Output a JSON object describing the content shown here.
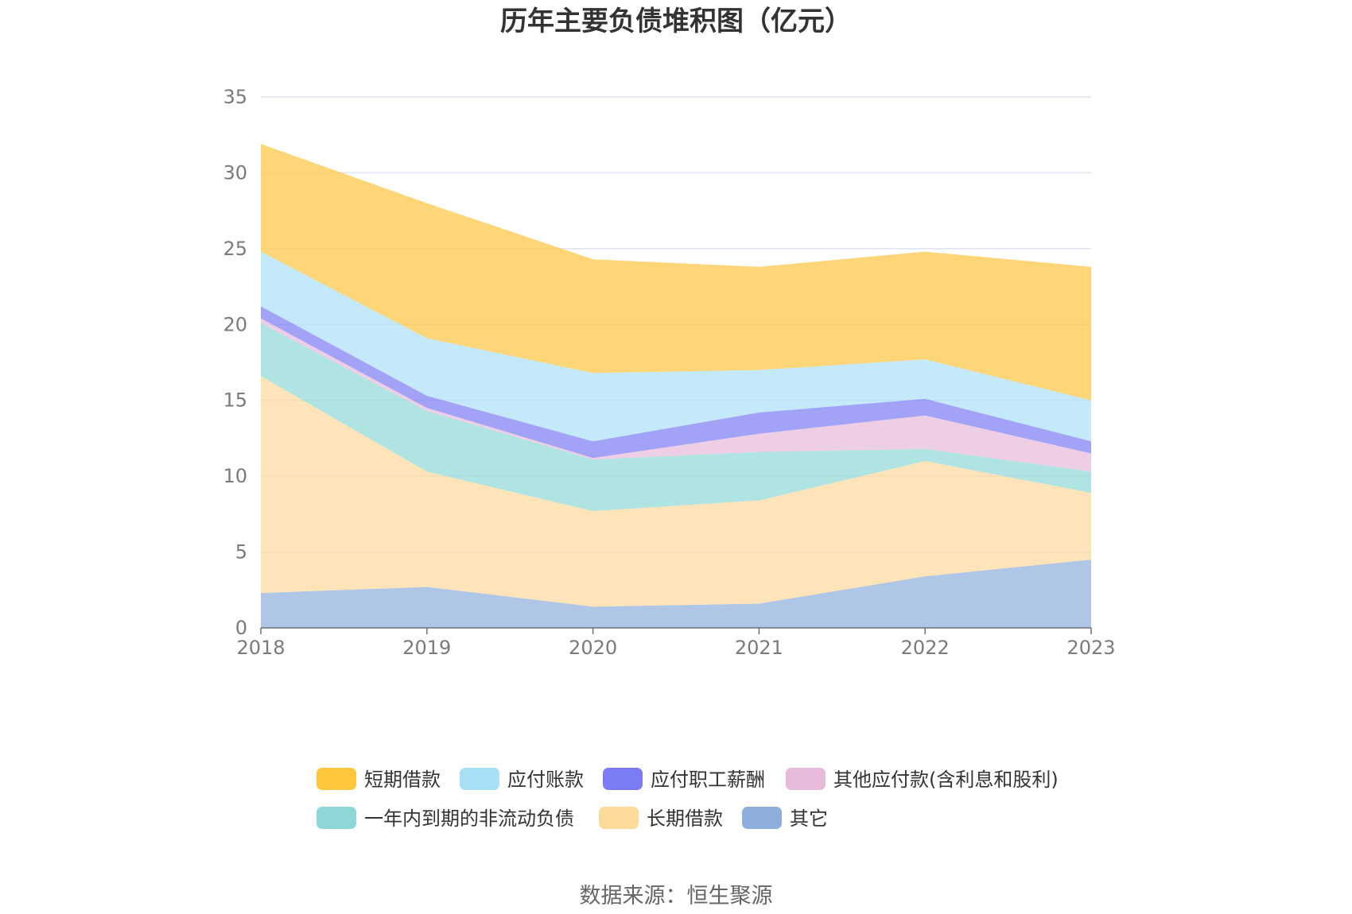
{
  "chart_data": {
    "type": "area",
    "stacked": true,
    "title": "历年主要负债堆积图（亿元）",
    "x": [
      "2018",
      "2019",
      "2020",
      "2021",
      "2022",
      "2023"
    ],
    "ylim": [
      0,
      35
    ],
    "yticks": [
      "0",
      "5",
      "10",
      "15",
      "20",
      "25",
      "30",
      "35"
    ],
    "grid": true,
    "legend_position": "bottom",
    "series": [
      {
        "name": "其它",
        "color": "#8eaedb",
        "values": [
          2.3,
          2.7,
          1.4,
          1.6,
          3.4,
          4.5
        ]
      },
      {
        "name": "长期借款",
        "color": "#fdd99a",
        "values": [
          14.3,
          7.6,
          6.3,
          6.8,
          7.6,
          4.4
        ]
      },
      {
        "name": "一年内到期的非流动负债",
        "color": "#8dd8d6",
        "values": [
          3.5,
          4.0,
          3.4,
          3.2,
          0.8,
          1.4
        ]
      },
      {
        "name": "其他应付款(含利息和股利)",
        "color": "#e7b9da",
        "values": [
          0.3,
          0.2,
          0.1,
          1.2,
          2.2,
          1.2
        ]
      },
      {
        "name": "应付职工薪酬",
        "color": "#7b7bf3",
        "values": [
          0.8,
          0.8,
          1.1,
          1.4,
          1.1,
          0.8
        ]
      },
      {
        "name": "应付账款",
        "color": "#a9e0f8",
        "values": [
          3.6,
          3.8,
          4.5,
          2.8,
          2.6,
          2.7
        ]
      },
      {
        "name": "短期借款",
        "color": "#ffc53d",
        "values": [
          7.1,
          8.9,
          7.5,
          6.8,
          7.1,
          8.8
        ]
      }
    ],
    "legend": [
      {
        "name": "短期借款",
        "color": "#ffc53d"
      },
      {
        "name": "应付账款",
        "color": "#a9e0f8"
      },
      {
        "name": "应付职工薪酬",
        "color": "#7b7bf3"
      },
      {
        "name": "其他应付款(含利息和股利)",
        "color": "#e7b9da"
      },
      {
        "name": "一年内到期的非流动负债",
        "color": "#8dd8d6"
      },
      {
        "name": "长期借款",
        "color": "#fdd99a"
      },
      {
        "name": "其它",
        "color": "#8eaedb"
      }
    ]
  },
  "source": "数据来源：恒生聚源"
}
